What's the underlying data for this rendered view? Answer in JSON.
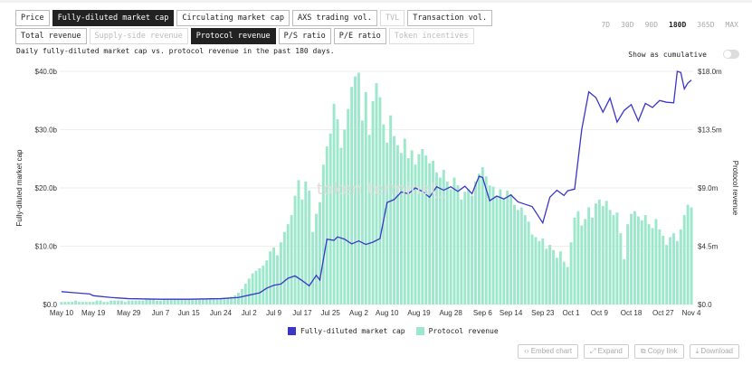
{
  "metric_tabs": [
    {
      "label": "Price",
      "state": "normal"
    },
    {
      "label": "Fully-diluted market cap",
      "state": "active"
    },
    {
      "label": "Circulating market cap",
      "state": "normal"
    },
    {
      "label": "AXS trading vol.",
      "state": "normal"
    },
    {
      "label": "TVL",
      "state": "disabled"
    },
    {
      "label": "Transaction vol.",
      "state": "normal"
    }
  ],
  "metric_tabs2": [
    {
      "label": "Total revenue",
      "state": "normal"
    },
    {
      "label": "Supply-side revenue",
      "state": "disabled"
    },
    {
      "label": "Protocol revenue",
      "state": "active"
    },
    {
      "label": "P/S ratio",
      "state": "normal"
    },
    {
      "label": "P/E ratio",
      "state": "normal"
    },
    {
      "label": "Token incentives",
      "state": "disabled"
    }
  ],
  "description": "Daily fully-diluted market cap vs. protocol revenue in the past 180 days.",
  "ranges": [
    "7D",
    "30D",
    "90D",
    "180D",
    "365D",
    "MAX"
  ],
  "selected_range": "180D",
  "cumulative_label": "Show as cumulative",
  "cumulative_on": false,
  "watermark": "token terminal_",
  "actions": [
    "‹› Embed chart",
    "⤢ Expand",
    "⧉ Copy link",
    "⤓ Download"
  ],
  "colors": {
    "line": "#3b35c9",
    "bar": "#9de8cc"
  },
  "chart_data": {
    "type": "bar+line",
    "x_labels": [
      {
        "day": 0,
        "label": "May 10"
      },
      {
        "day": 9,
        "label": "May 19"
      },
      {
        "day": 19,
        "label": "May 29"
      },
      {
        "day": 28,
        "label": "Jun 7"
      },
      {
        "day": 36,
        "label": "Jun 15"
      },
      {
        "day": 45,
        "label": "Jun 24"
      },
      {
        "day": 53,
        "label": "Jul 2"
      },
      {
        "day": 60,
        "label": "Jul 9"
      },
      {
        "day": 68,
        "label": "Jul 17"
      },
      {
        "day": 76,
        "label": "Jul 25"
      },
      {
        "day": 84,
        "label": "Aug 2"
      },
      {
        "day": 92,
        "label": "Aug 10"
      },
      {
        "day": 101,
        "label": "Aug 19"
      },
      {
        "day": 110,
        "label": "Aug 28"
      },
      {
        "day": 119,
        "label": "Sep 6"
      },
      {
        "day": 127,
        "label": "Sep 14"
      },
      {
        "day": 136,
        "label": "Sep 23"
      },
      {
        "day": 144,
        "label": "Oct 1"
      },
      {
        "day": 152,
        "label": "Oct 9"
      },
      {
        "day": 161,
        "label": "Oct 18"
      },
      {
        "day": 170,
        "label": "Oct 27"
      },
      {
        "day": 178,
        "label": "Nov 4"
      }
    ],
    "y_left": {
      "label": "Fully-diluted market cap",
      "ticks": [
        "$0.0",
        "$10.0b",
        "$20.0b",
        "$30.0b",
        "$40.0b"
      ],
      "range": [
        0,
        40
      ]
    },
    "y_right": {
      "label": "Protocol revenue",
      "ticks": [
        "$0.0",
        "$4.5m",
        "$9.0m",
        "$13.5m",
        "$18.0m"
      ],
      "range": [
        0,
        18
      ]
    },
    "series": [
      {
        "name": "Fully-diluted market cap",
        "type": "line",
        "unit": "$b",
        "points": [
          [
            0,
            2.2
          ],
          [
            4,
            2.0
          ],
          [
            8,
            1.8
          ],
          [
            9,
            1.5
          ],
          [
            14,
            1.2
          ],
          [
            19,
            1.0
          ],
          [
            28,
            0.9
          ],
          [
            36,
            0.9
          ],
          [
            45,
            1.0
          ],
          [
            50,
            1.2
          ],
          [
            53,
            1.6
          ],
          [
            56,
            2.0
          ],
          [
            58,
            2.8
          ],
          [
            60,
            3.3
          ],
          [
            62,
            3.5
          ],
          [
            64,
            4.5
          ],
          [
            66,
            4.9
          ],
          [
            68,
            4.1
          ],
          [
            70,
            3.2
          ],
          [
            72,
            5.0
          ],
          [
            73,
            4.2
          ],
          [
            75,
            11.2
          ],
          [
            77,
            11.0
          ],
          [
            78,
            11.6
          ],
          [
            80,
            11.2
          ],
          [
            82,
            10.4
          ],
          [
            84,
            10.9
          ],
          [
            86,
            10.3
          ],
          [
            88,
            10.7
          ],
          [
            90,
            11.3
          ],
          [
            92,
            17.5
          ],
          [
            94,
            18.0
          ],
          [
            96,
            19.3
          ],
          [
            98,
            19.0
          ],
          [
            100,
            20.0
          ],
          [
            102,
            19.4
          ],
          [
            104,
            18.4
          ],
          [
            106,
            20.2
          ],
          [
            108,
            19.6
          ],
          [
            110,
            20.2
          ],
          [
            112,
            19.4
          ],
          [
            114,
            20.3
          ],
          [
            116,
            19.0
          ],
          [
            118,
            22.0
          ],
          [
            119,
            21.8
          ],
          [
            121,
            17.8
          ],
          [
            123,
            18.6
          ],
          [
            125,
            18.1
          ],
          [
            127,
            18.8
          ],
          [
            129,
            17.6
          ],
          [
            131,
            17.2
          ],
          [
            133,
            16.8
          ],
          [
            136,
            14.0
          ],
          [
            138,
            18.4
          ],
          [
            140,
            19.6
          ],
          [
            142,
            18.7
          ],
          [
            143,
            19.5
          ],
          [
            145,
            19.8
          ],
          [
            147,
            30.0
          ],
          [
            149,
            36.5
          ],
          [
            151,
            35.5
          ],
          [
            153,
            33.0
          ],
          [
            155,
            35.4
          ],
          [
            157,
            31.3
          ],
          [
            159,
            33.3
          ],
          [
            161,
            34.3
          ],
          [
            163,
            31.5
          ],
          [
            165,
            34.5
          ],
          [
            167,
            33.8
          ],
          [
            169,
            35.0
          ],
          [
            171,
            34.7
          ],
          [
            173,
            34.6
          ],
          [
            174,
            40.0
          ],
          [
            175,
            39.8
          ],
          [
            176,
            37.0
          ],
          [
            177,
            38.0
          ],
          [
            178,
            38.5
          ]
        ]
      },
      {
        "name": "Protocol revenue",
        "type": "bar",
        "unit": "$m",
        "values": [
          0.2,
          0.2,
          0.2,
          0.2,
          0.3,
          0.2,
          0.2,
          0.2,
          0.2,
          0.2,
          0.3,
          0.3,
          0.2,
          0.2,
          0.3,
          0.3,
          0.3,
          0.3,
          0.2,
          0.3,
          0.3,
          0.3,
          0.3,
          0.3,
          0.4,
          0.4,
          0.4,
          0.3,
          0.3,
          0.4,
          0.4,
          0.4,
          0.4,
          0.4,
          0.4,
          0.4,
          0.4,
          0.4,
          0.4,
          0.4,
          0.4,
          0.4,
          0.4,
          0.4,
          0.4,
          0.5,
          0.5,
          0.5,
          0.6,
          0.7,
          0.9,
          1.2,
          1.6,
          2.0,
          2.4,
          2.6,
          2.8,
          3.0,
          3.4,
          4.1,
          4.4,
          3.8,
          4.8,
          5.6,
          6.2,
          6.9,
          8.4,
          9.6,
          8.1,
          9.5,
          8.8,
          5.6,
          7.0,
          7.9,
          10.8,
          12.2,
          13.2,
          15.5,
          14.3,
          12.1,
          13.5,
          15.1,
          16.8,
          17.6,
          17.9,
          14.2,
          16.4,
          13.1,
          15.7,
          17.1,
          16.0,
          13.9,
          12.5,
          14.6,
          13.0,
          12.3,
          11.7,
          12.8,
          11.3,
          11.9,
          10.8,
          11.6,
          12.0,
          11.5,
          10.9,
          11.1,
          10.2,
          9.8,
          10.4,
          9.5,
          8.9,
          9.8,
          9.2,
          8.1,
          8.7,
          8.9,
          8.4,
          9.5,
          10.1,
          10.6,
          9.9,
          9.2,
          9.1,
          8.3,
          8.9,
          8.2,
          8.8,
          8.5,
          7.7,
          7.3,
          7.5,
          6.9,
          6.4,
          5.4,
          5.2,
          4.9,
          5.1,
          4.3,
          4.6,
          4.2,
          3.6,
          4.1,
          3.3,
          2.9,
          4.8,
          6.7,
          7.2,
          6.1,
          6.6,
          7.5,
          6.7,
          7.8,
          8.1,
          7.6,
          8.0,
          7.3,
          6.9,
          7.1,
          5.5,
          3.5,
          6.2,
          7.0,
          7.2,
          6.8,
          6.5,
          6.9,
          6.2,
          5.9,
          6.6,
          5.8,
          5.3,
          4.6,
          5.2,
          5.5,
          4.9,
          5.8,
          6.9,
          7.7,
          7.5
        ]
      }
    ],
    "legend_position": "bottom",
    "grid": "horizontal"
  }
}
